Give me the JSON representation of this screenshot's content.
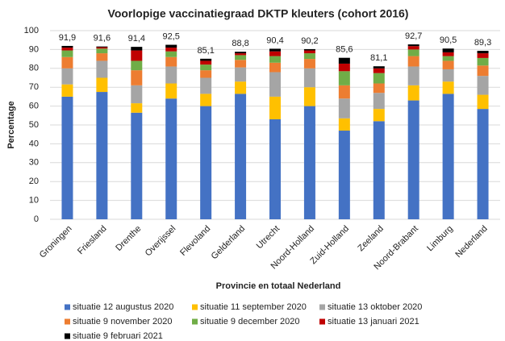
{
  "chart_data": {
    "type": "stacked_bar",
    "title": "Voorlopige vaccinatiegraad DKTP kleuters (cohort 2016)",
    "x_label": "Provincie en totaal Nederland",
    "y_label": "Percentage",
    "categories": [
      "Groningen",
      "Friesland",
      "Drenthe",
      "Overijssel",
      "Flevoland",
      "Gelderland",
      "Utrecht",
      "Noord-Holland",
      "Zuid-Holland",
      "Zeeland",
      "Noord-Brabant",
      "Limburg",
      "Nederland"
    ],
    "series": [
      {
        "name": "situatie 12 augustus 2020",
        "color": "#4472c4",
        "values": [
          65,
          67.5,
          56.5,
          64,
          60,
          66.5,
          53,
          60,
          47,
          52,
          63,
          66.5,
          58.5
        ]
      },
      {
        "name": "situatie 11 september 2020",
        "color": "#ffc000",
        "values": [
          6.5,
          7.5,
          5,
          8,
          6.5,
          6.5,
          12,
          10,
          6.5,
          6.5,
          8,
          6.5,
          7.5
        ]
      },
      {
        "name": "situatie 13 oktober 2020",
        "color": "#a5a5a5",
        "values": [
          8.5,
          9,
          9.5,
          9,
          8.5,
          7.5,
          13,
          10,
          10.5,
          8.5,
          10,
          6.5,
          10
        ]
      },
      {
        "name": "situatie 9 november 2020",
        "color": "#ed7d31",
        "values": [
          6,
          4,
          8,
          5,
          4,
          4,
          5,
          5,
          7,
          5,
          5.5,
          4.5,
          5.5
        ]
      },
      {
        "name": "situatie 9 december 2020",
        "color": "#70ad47",
        "values": [
          3.5,
          2.5,
          5,
          3,
          3,
          2.5,
          3.5,
          3,
          7.5,
          5.5,
          3.5,
          2.5,
          4
        ]
      },
      {
        "name": "situatie 13 januari 2021",
        "color": "#c00000",
        "values": [
          1.5,
          0.7,
          5.5,
          2,
          2,
          1,
          2.5,
          1.5,
          4,
          2.5,
          1.8,
          2,
          2.5
        ]
      },
      {
        "name": "situatie 9 februari 2021",
        "color": "#000000",
        "values": [
          0.9,
          0.4,
          1.9,
          1.5,
          1.1,
          0.8,
          1.4,
          0.7,
          3.1,
          1.1,
          0.9,
          2,
          1.3
        ]
      }
    ],
    "totals": [
      91.9,
      91.6,
      91.4,
      92.5,
      85.1,
      88.8,
      90.4,
      90.2,
      85.6,
      81.1,
      92.7,
      90.5,
      89.3
    ],
    "total_labels": [
      "91,9",
      "91,6",
      "91,4",
      "92,5",
      "85,1",
      "88,8",
      "90,4",
      "90,2",
      "85,6",
      "81,1",
      "92,7",
      "90,5",
      "89,3"
    ],
    "ylim": [
      0,
      100
    ],
    "yticks": [
      0,
      10,
      20,
      30,
      40,
      50,
      60,
      70,
      80,
      90,
      100
    ],
    "grid": true
  }
}
